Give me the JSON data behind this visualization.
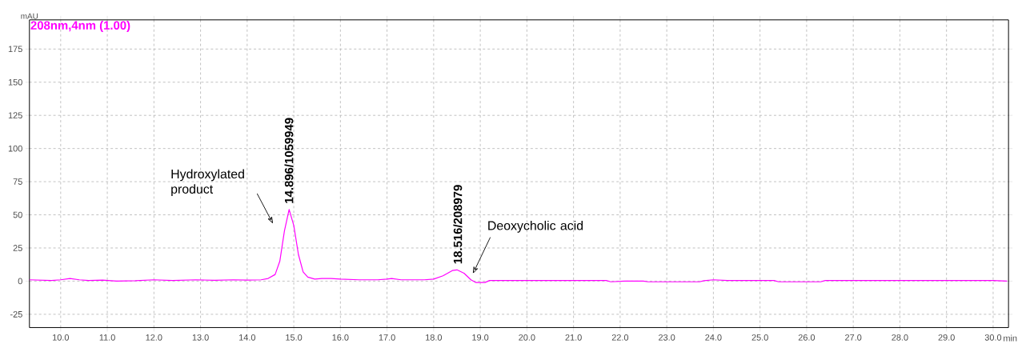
{
  "chart_data": {
    "type": "line",
    "title": "208nm,4nm (1.00)",
    "xlabel": "min",
    "ylabel": "mAU",
    "x": [
      9.33,
      9.8,
      10.0,
      10.2,
      10.4,
      10.6,
      10.9,
      11.2,
      11.6,
      12.0,
      12.4,
      12.9,
      13.3,
      13.7,
      14.0,
      14.3,
      14.45,
      14.6,
      14.7,
      14.8,
      14.9,
      15.0,
      15.1,
      15.2,
      15.3,
      15.45,
      15.6,
      15.8,
      16.0,
      16.4,
      16.8,
      17.0,
      17.1,
      17.3,
      17.8,
      18.0,
      18.2,
      18.4,
      18.5,
      18.65,
      18.8,
      18.9,
      19.1,
      19.2,
      20.0,
      21.7,
      21.8,
      22.1,
      22.5,
      22.6,
      23.7,
      23.8,
      24.0,
      24.3,
      25.3,
      25.4,
      26.3,
      26.4,
      30.0,
      30.3
    ],
    "series": [
      {
        "color": "#ff00ff",
        "values": [
          1,
          0.5,
          1,
          2,
          1,
          0.5,
          0.8,
          0,
          0.3,
          1,
          0.5,
          1,
          0.6,
          1,
          0.8,
          1,
          2,
          5,
          15,
          38,
          54,
          42,
          20,
          7,
          3,
          1.5,
          2,
          2,
          1.5,
          1,
          1,
          1.5,
          2,
          1,
          1,
          1.5,
          4,
          8,
          8.5,
          6,
          1,
          -1,
          -1,
          0.5,
          0.5,
          0.5,
          -0.5,
          0,
          0,
          -0.5,
          -0.5,
          0.3,
          1,
          0.5,
          0.5,
          -0.5,
          -0.5,
          0.5,
          0.5,
          0
        ]
      }
    ],
    "xlim": [
      9.33,
      30.33
    ],
    "ylim": [
      -35,
      197
    ],
    "xticks": [
      {
        "value": 10,
        "label": "10.0"
      },
      {
        "value": 11,
        "label": "11.0"
      },
      {
        "value": 12,
        "label": "12.0"
      },
      {
        "value": 13,
        "label": "13.0"
      },
      {
        "value": 14,
        "label": "14.0"
      },
      {
        "value": 15,
        "label": "15.0"
      },
      {
        "value": 16,
        "label": "16.0"
      },
      {
        "value": 17,
        "label": "17.0"
      },
      {
        "value": 18,
        "label": "18.0"
      },
      {
        "value": 19,
        "label": "19.0"
      },
      {
        "value": 20,
        "label": "20.0"
      },
      {
        "value": 21,
        "label": "21.0"
      },
      {
        "value": 22,
        "label": "22.0"
      },
      {
        "value": 23,
        "label": "23.0"
      },
      {
        "value": 24,
        "label": "24.0"
      },
      {
        "value": 25,
        "label": "25.0"
      },
      {
        "value": 26,
        "label": "26.0"
      },
      {
        "value": 27,
        "label": "27.0"
      },
      {
        "value": 28,
        "label": "28.0"
      },
      {
        "value": 29,
        "label": "29.0"
      },
      {
        "value": 30,
        "label": "30.0"
      }
    ],
    "yticks": [
      -25,
      0,
      25,
      50,
      75,
      100,
      125,
      150,
      175
    ],
    "grid": true,
    "legend": false,
    "marker": "none",
    "line_style": "solid",
    "annotations": [
      {
        "text": "14.896/1059949",
        "x": 14.896,
        "y": 54
      },
      {
        "text": "18.516/208979",
        "x": 18.516,
        "y": 8.5
      },
      "Hydroxylated product",
      "Deoxycholic acid"
    ]
  }
}
